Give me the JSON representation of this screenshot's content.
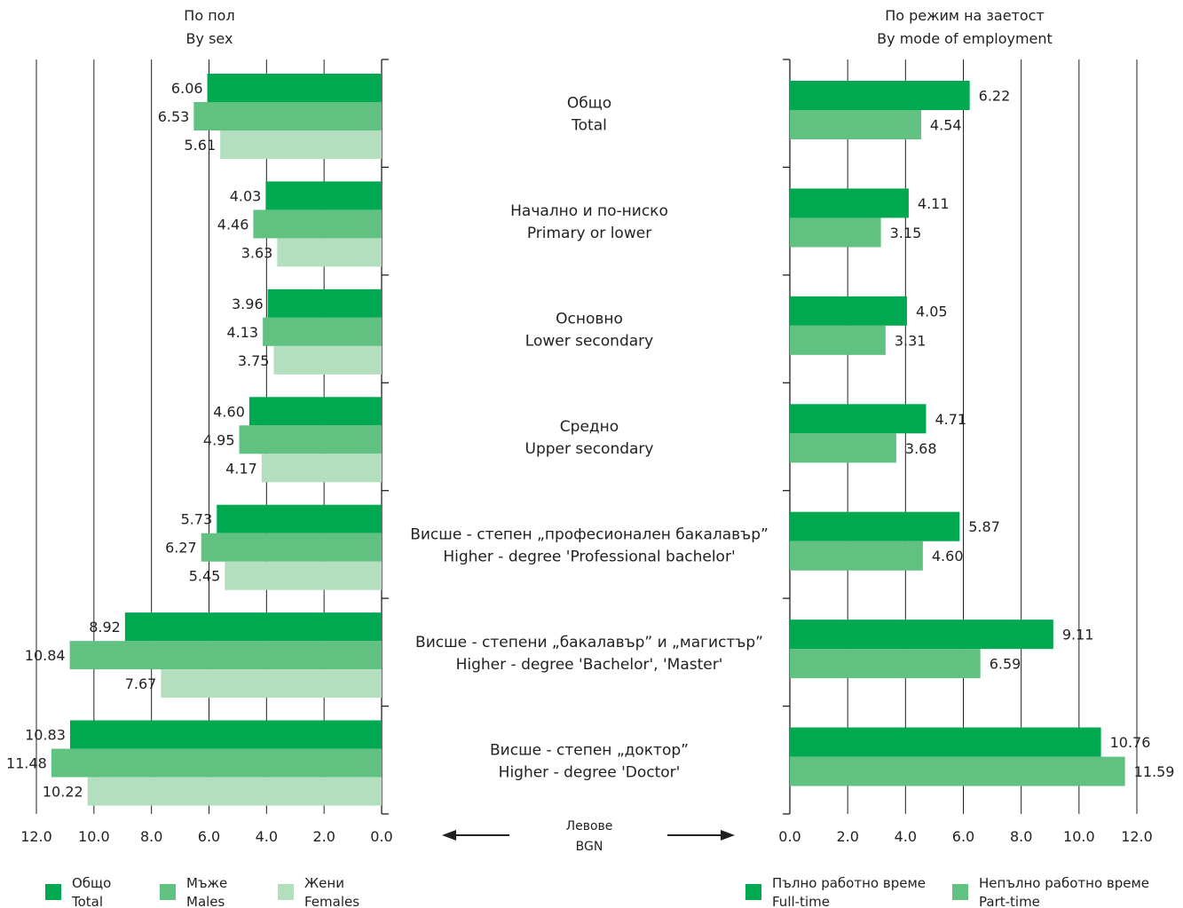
{
  "chart_data": [
    {
      "type": "bar",
      "orientation": "horizontal",
      "direction": "right-to-left",
      "title": [
        "По пол",
        "By sex"
      ],
      "xlim": [
        0,
        12
      ],
      "ticks": [
        "0.0",
        "2.0",
        "4.0",
        "6.0",
        "8.0",
        "10.0",
        "12.0"
      ],
      "grid": true,
      "legend_placement": "bottom-left",
      "series": [
        {
          "name": [
            "Общо",
            "Total"
          ],
          "color": "#00a84f",
          "values": [
            6.06,
            4.03,
            3.96,
            4.6,
            5.73,
            8.92,
            10.83
          ],
          "labels": [
            "6.06",
            "4.03",
            "3.96",
            "4.60",
            "5.73",
            "8.92",
            "10.83"
          ]
        },
        {
          "name": [
            "Мъже",
            "Males"
          ],
          "color": "#60c181",
          "values": [
            6.53,
            4.46,
            4.13,
            4.95,
            6.27,
            10.84,
            11.48
          ],
          "labels": [
            "6.53",
            "4.46",
            "4.13",
            "4.95",
            "6.27",
            "10.84",
            "11.48"
          ]
        },
        {
          "name": [
            "Жени",
            "Females"
          ],
          "color": "#b4dfbf",
          "values": [
            5.61,
            3.63,
            3.75,
            4.17,
            5.45,
            7.67,
            10.22
          ],
          "labels": [
            "5.61",
            "3.63",
            "3.75",
            "4.17",
            "5.45",
            "7.67",
            "10.22"
          ]
        }
      ]
    },
    {
      "type": "bar",
      "orientation": "horizontal",
      "direction": "left-to-right",
      "title": [
        "По режим на заетост",
        "By mode of employment"
      ],
      "xlim": [
        0,
        12
      ],
      "ticks": [
        "0.0",
        "2.0",
        "4.0",
        "6.0",
        "8.0",
        "10.0",
        "12.0"
      ],
      "grid": true,
      "legend_placement": "bottom-right",
      "series": [
        {
          "name": [
            "Пълно работно време",
            "Full-time"
          ],
          "color": "#00a84f",
          "values": [
            6.22,
            4.11,
            4.05,
            4.71,
            5.87,
            9.11,
            10.76
          ],
          "labels": [
            "6.22",
            "4.11",
            "4.05",
            "4.71",
            "5.87",
            "9.11",
            "10.76"
          ]
        },
        {
          "name": [
            "Непълно работно време",
            "Part-time"
          ],
          "color": "#60c181",
          "values": [
            4.54,
            3.15,
            3.31,
            3.68,
            4.6,
            6.59,
            11.59
          ],
          "labels": [
            "4.54",
            "3.15",
            "3.31",
            "3.68",
            "4.60",
            "6.59",
            "11.59"
          ]
        }
      ]
    }
  ],
  "categories": [
    [
      "Общо",
      "Total"
    ],
    [
      "Начално и по-ниско",
      "Primary or lower"
    ],
    [
      "Основно",
      "Lower secondary"
    ],
    [
      "Средно",
      "Upper secondary"
    ],
    [
      "Висше - степен „професионален бакалавър”",
      "Higher - degree 'Professional bachelor'"
    ],
    [
      "Висше - степени „бакалавър” и „магистър”",
      "Higher - degree 'Bachelor', 'Master'"
    ],
    [
      "Висше - степен  „доктор”",
      "Higher - degree 'Doctor'"
    ]
  ],
  "unit_label": [
    "Левове",
    "BGN"
  ],
  "colors": {
    "grid": "#231f20",
    "axis": "#231f20",
    "text": "#231f20"
  }
}
